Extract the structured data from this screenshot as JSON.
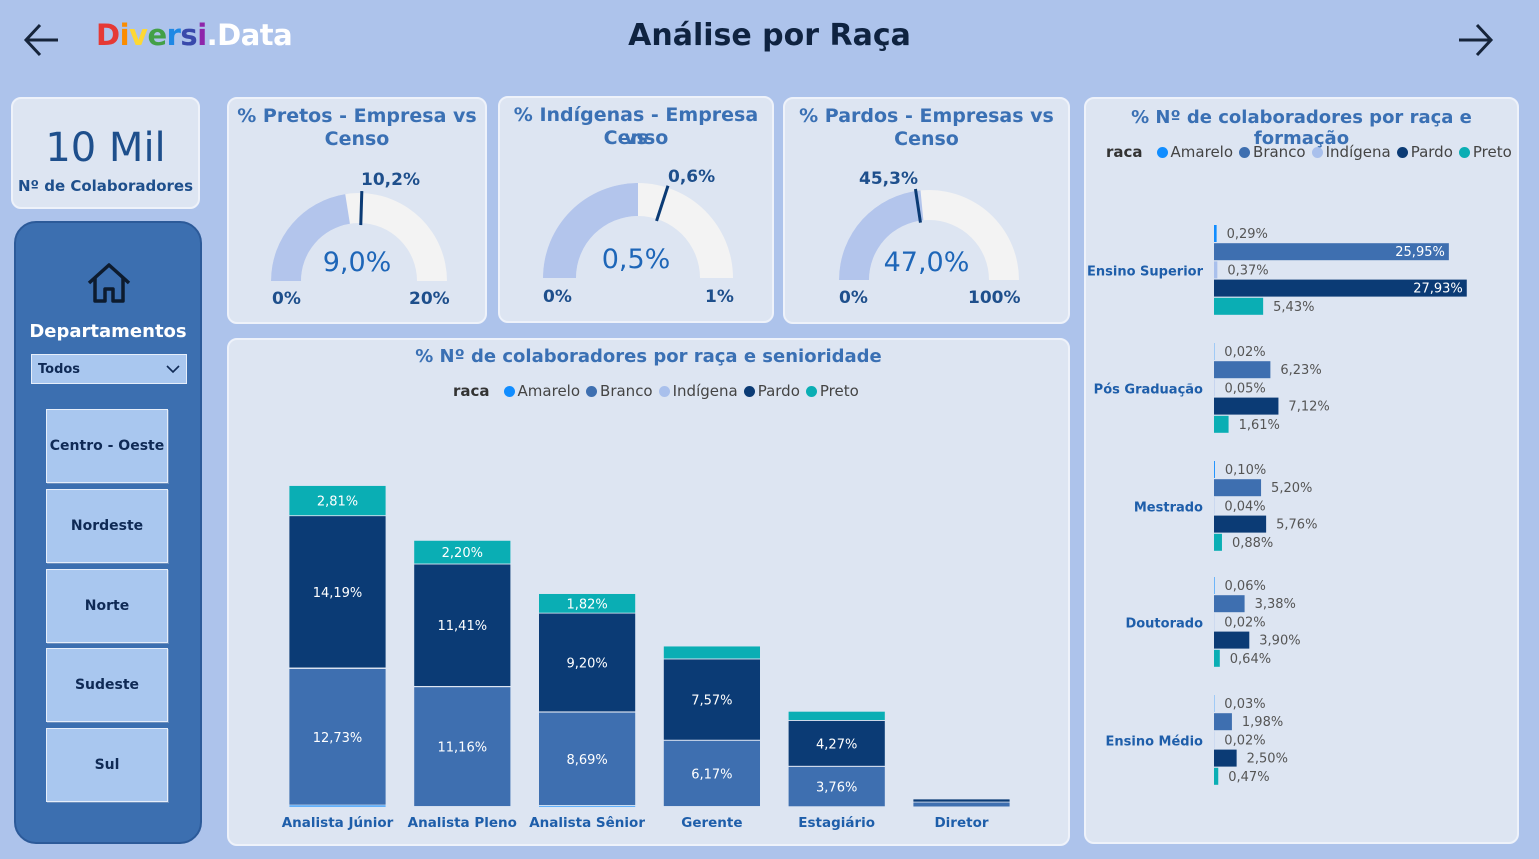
{
  "header": {
    "logo": [
      "D",
      "i",
      "v",
      "e",
      "r",
      "s",
      "i",
      ".Data"
    ],
    "logo_colors": [
      "#e53935",
      "#fb8c00",
      "#fdd835",
      "#43a047",
      "#1e88e5",
      "#3949ab",
      "#8e24aa",
      "#ffffff"
    ],
    "title": "Análise por Raça"
  },
  "kpi": {
    "value": "10 Mil",
    "label": "Nº de Colaboradores"
  },
  "departments": {
    "title": "Departamentos",
    "selected": "Todos",
    "buttons": [
      "Centro - Oeste",
      "Nordeste",
      "Norte",
      "Sudeste",
      "Sul"
    ]
  },
  "gauges": [
    {
      "title_line1": "% Pretos - Empresa vs",
      "title_line2": "Censo",
      "value": "9,0%",
      "target": "10,2%",
      "min": "0%",
      "max": "20%",
      "value_num": 9.0,
      "target_num": 10.2,
      "max_num": 20
    },
    {
      "title_line1": "% Indígenas - Empresa vs",
      "title_line2": "Censo",
      "value": "0,5%",
      "target": "0,6%",
      "min": "0%",
      "max": "1%",
      "value_num": 0.5,
      "target_num": 0.6,
      "max_num": 1
    },
    {
      "title_line1": "% Pardos - Empresas vs",
      "title_line2": "Censo",
      "value": "47,0%",
      "target": "45,3%",
      "min": "0%",
      "max": "100%",
      "value_num": 47.0,
      "target_num": 45.3,
      "max_num": 100
    }
  ],
  "colors": {
    "Amarelo": "#118dff",
    "Branco": "#3e6fb0",
    "Indígena": "#a9c0ec",
    "Pardo": "#0b3b75",
    "Preto": "#0aaeb4"
  },
  "seniority_chart": {
    "title": "% Nº de colaboradores por raça e senioridade",
    "legend_title": "raca",
    "legend": [
      "Amarelo",
      "Branco",
      "Indígena",
      "Pardo",
      "Preto"
    ],
    "chart_data": {
      "type": "bar",
      "stacked": true,
      "categories": [
        "Analista Júnior",
        "Analista Pleno",
        "Analista Sênior",
        "Gerente",
        "Estagiário",
        "Diretor"
      ],
      "series": [
        {
          "name": "Amarelo",
          "values": [
            0.18,
            0.05,
            0.15,
            0.05,
            0.03,
            0.01
          ]
        },
        {
          "name": "Branco",
          "values": [
            12.73,
            11.16,
            8.69,
            6.17,
            3.76,
            0.45
          ]
        },
        {
          "name": "Indígena",
          "values": [
            0.05,
            0.03,
            0.03,
            0.01,
            0.01,
            0.0
          ]
        },
        {
          "name": "Pardo",
          "values": [
            14.19,
            11.41,
            9.2,
            7.57,
            4.27,
            0.3
          ]
        },
        {
          "name": "Preto",
          "values": [
            2.81,
            2.2,
            1.82,
            1.2,
            0.85,
            0.05
          ]
        }
      ],
      "labels": [
        {
          "category": 0,
          "series": "Branco",
          "text": "12,73%"
        },
        {
          "category": 0,
          "series": "Pardo",
          "text": "14,19%"
        },
        {
          "category": 0,
          "series": "Preto",
          "text": "2,81%"
        },
        {
          "category": 1,
          "series": "Branco",
          "text": "11,16%"
        },
        {
          "category": 1,
          "series": "Pardo",
          "text": "11,41%"
        },
        {
          "category": 1,
          "series": "Preto",
          "text": "2,20%"
        },
        {
          "category": 2,
          "series": "Branco",
          "text": "8,69%"
        },
        {
          "category": 2,
          "series": "Pardo",
          "text": "9,20%"
        },
        {
          "category": 2,
          "series": "Preto",
          "text": "1,82%"
        },
        {
          "category": 3,
          "series": "Branco",
          "text": "6,17%"
        },
        {
          "category": 3,
          "series": "Pardo",
          "text": "7,57%"
        },
        {
          "category": 4,
          "series": "Branco",
          "text": "3,76%"
        },
        {
          "category": 4,
          "series": "Pardo",
          "text": "4,27%"
        }
      ]
    }
  },
  "education_chart": {
    "title": "% Nº de colaboradores por raça e formação",
    "legend_title": "raca",
    "legend": [
      "Amarelo",
      "Branco",
      "Indígena",
      "Pardo",
      "Preto"
    ],
    "chart_data": {
      "type": "bar",
      "orientation": "horizontal",
      "categories": [
        "Ensino Superior",
        "Pós Graduação",
        "Mestrado",
        "Doutorado",
        "Ensino Médio"
      ],
      "series": [
        {
          "name": "Amarelo",
          "values": [
            0.29,
            0.02,
            0.1,
            0.06,
            0.03
          ],
          "labels": [
            "0,29%",
            "0,02%",
            "0,10%",
            "0,06%",
            "0,03%"
          ]
        },
        {
          "name": "Branco",
          "values": [
            25.95,
            6.23,
            5.2,
            3.38,
            1.98
          ],
          "labels": [
            "25,95%",
            "6,23%",
            "5,20%",
            "3,38%",
            "1,98%"
          ]
        },
        {
          "name": "Indígena",
          "values": [
            0.37,
            0.05,
            0.04,
            0.02,
            0.02
          ],
          "labels": [
            "0,37%",
            "0,05%",
            "0,04%",
            "0,02%",
            "0,02%"
          ]
        },
        {
          "name": "Pardo",
          "values": [
            27.93,
            7.12,
            5.76,
            3.9,
            2.5
          ],
          "labels": [
            "27,93%",
            "7,12%",
            "5,76%",
            "3,90%",
            "2,50%"
          ]
        },
        {
          "name": "Preto",
          "values": [
            5.43,
            1.61,
            0.88,
            0.64,
            0.47
          ],
          "labels": [
            "5,43%",
            "1,61%",
            "0,88%",
            "0,64%",
            "0,47%"
          ]
        }
      ]
    }
  }
}
